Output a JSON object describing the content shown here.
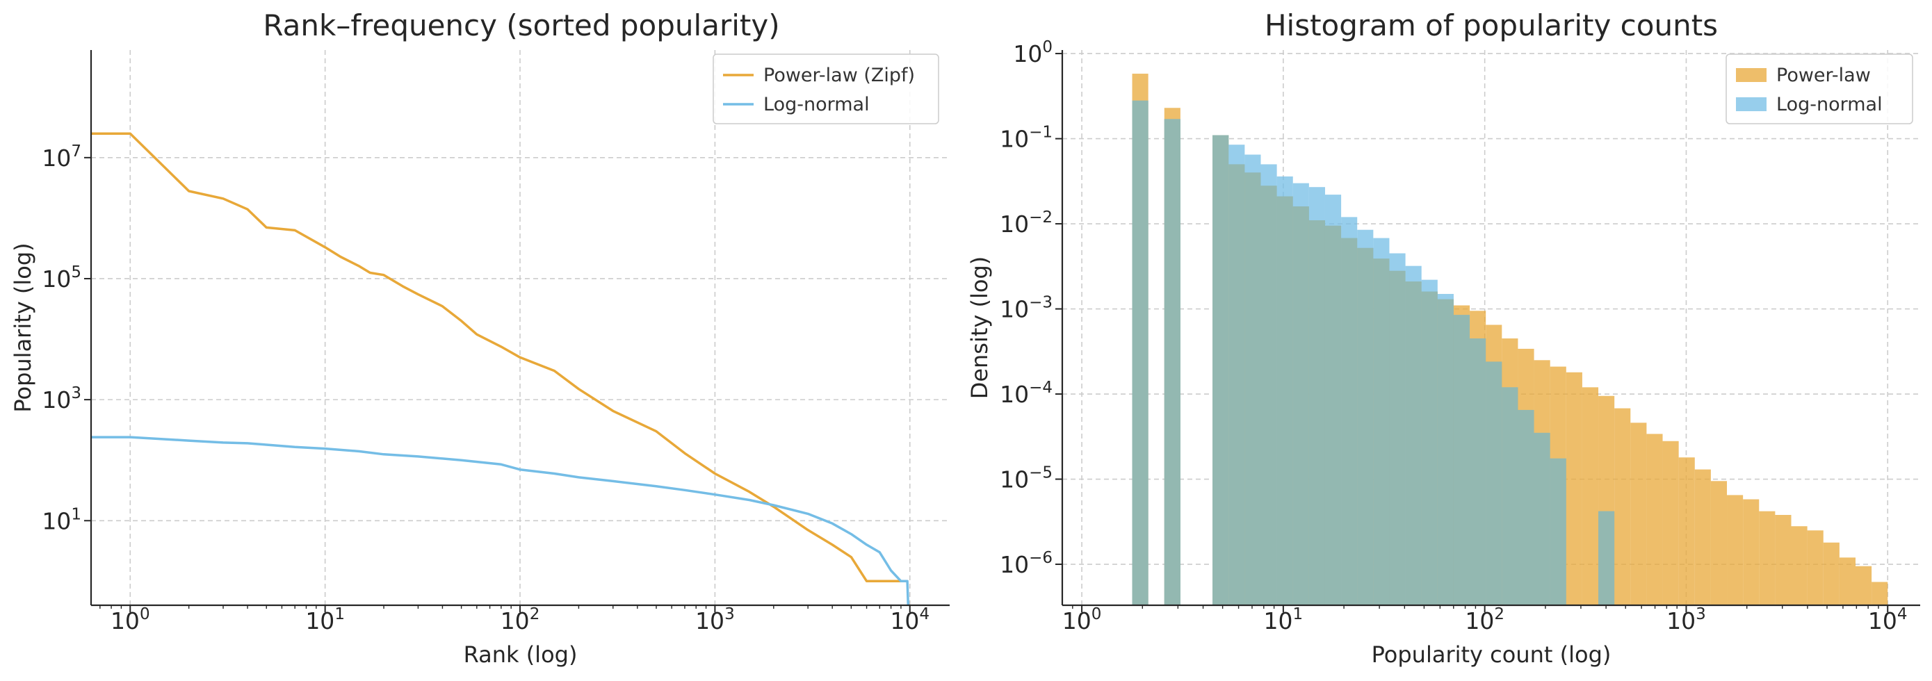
{
  "colors": {
    "power_law": "#E8A838",
    "log_normal": "#74BDE6",
    "overlap": "#93B8B1"
  },
  "chart_data": [
    {
      "type": "line",
      "title": "Rank–frequency (sorted popularity)",
      "xlabel": "Rank (log)",
      "ylabel": "Popularity (log)",
      "xscale": "log",
      "yscale": "log",
      "xlim": [
        0.63,
        16000
      ],
      "ylim": [
        0.4,
        600000000
      ],
      "xticks": [
        {
          "base": "10",
          "exp": "0",
          "value": 1
        },
        {
          "base": "10",
          "exp": "1",
          "value": 10
        },
        {
          "base": "10",
          "exp": "2",
          "value": 100
        },
        {
          "base": "10",
          "exp": "3",
          "value": 1000
        },
        {
          "base": "10",
          "exp": "4",
          "value": 10000
        }
      ],
      "yticks": [
        {
          "base": "10",
          "exp": "1",
          "value": 10
        },
        {
          "base": "10",
          "exp": "3",
          "value": 1000
        },
        {
          "base": "10",
          "exp": "5",
          "value": 100000
        },
        {
          "base": "10",
          "exp": "7",
          "value": 10000000
        }
      ],
      "grid": true,
      "legend": "top-right",
      "series": [
        {
          "name": "Power-law (Zipf)",
          "color": "#E8A838",
          "points": [
            [
              0.63,
              25000000
            ],
            [
              1,
              25000000
            ],
            [
              2,
              2800000
            ],
            [
              3,
              2100000
            ],
            [
              4,
              1400000
            ],
            [
              5,
              700000
            ],
            [
              7,
              630000
            ],
            [
              10,
              330000
            ],
            [
              12,
              230000
            ],
            [
              15,
              160000
            ],
            [
              17,
              125000
            ],
            [
              20,
              115000
            ],
            [
              25,
              75000
            ],
            [
              30,
              55000
            ],
            [
              40,
              35000
            ],
            [
              50,
              20000
            ],
            [
              60,
              12000
            ],
            [
              80,
              7500
            ],
            [
              100,
              5000
            ],
            [
              150,
              3000
            ],
            [
              200,
              1500
            ],
            [
              300,
              650
            ],
            [
              500,
              300
            ],
            [
              700,
              130
            ],
            [
              1000,
              60
            ],
            [
              1500,
              30
            ],
            [
              2000,
              17
            ],
            [
              3000,
              7
            ],
            [
              4000,
              4
            ],
            [
              5000,
              2.5
            ],
            [
              6000,
              1
            ],
            [
              8000,
              1
            ],
            [
              9500,
              1
            ]
          ]
        },
        {
          "name": "Log-normal",
          "color": "#74BDE6",
          "points": [
            [
              0.63,
              240
            ],
            [
              1,
              240
            ],
            [
              2,
              210
            ],
            [
              3,
              195
            ],
            [
              4,
              190
            ],
            [
              5,
              180
            ],
            [
              7,
              165
            ],
            [
              10,
              155
            ],
            [
              15,
              140
            ],
            [
              20,
              125
            ],
            [
              30,
              115
            ],
            [
              50,
              100
            ],
            [
              80,
              85
            ],
            [
              100,
              70
            ],
            [
              150,
              60
            ],
            [
              200,
              52
            ],
            [
              300,
              45
            ],
            [
              500,
              37
            ],
            [
              700,
              32
            ],
            [
              1000,
              27
            ],
            [
              1500,
              22
            ],
            [
              2000,
              18
            ],
            [
              3000,
              13
            ],
            [
              4000,
              9
            ],
            [
              5000,
              6
            ],
            [
              6000,
              4
            ],
            [
              7000,
              3
            ],
            [
              8000,
              1.5
            ],
            [
              9000,
              1
            ],
            [
              9700,
              1
            ],
            [
              9800,
              0.4
            ]
          ]
        }
      ]
    },
    {
      "type": "bar",
      "title": "Histogram of popularity counts",
      "xlabel": "Popularity count (log)",
      "ylabel": "Density (log)",
      "xscale": "log",
      "yscale": "log",
      "xlim": [
        0.8,
        14500
      ],
      "ylim": [
        3.3e-07,
        1.1
      ],
      "xticks": [
        {
          "base": "10",
          "exp": "0",
          "value": 1
        },
        {
          "base": "10",
          "exp": "1",
          "value": 10
        },
        {
          "base": "10",
          "exp": "2",
          "value": 100
        },
        {
          "base": "10",
          "exp": "3",
          "value": 1000
        },
        {
          "base": "10",
          "exp": "4",
          "value": 10000
        }
      ],
      "yticks": [
        {
          "base": "10",
          "exp": "−6",
          "value": 1e-06
        },
        {
          "base": "10",
          "exp": "−5",
          "value": 1e-05
        },
        {
          "base": "10",
          "exp": "−4",
          "value": 0.0001
        },
        {
          "base": "10",
          "exp": "−3",
          "value": 0.001
        },
        {
          "base": "10",
          "exp": "−2",
          "value": 0.01
        },
        {
          "base": "10",
          "exp": "−1",
          "value": 0.1
        },
        {
          "base": "10",
          "exp": "0",
          "value": 1
        }
      ],
      "grid": true,
      "legend": "top-right",
      "bin_edges_log10_range": [
        0.25,
        4.0
      ],
      "series": [
        {
          "name": "Power-law",
          "color": "#E8A838",
          "values": [
            0.58,
            0,
            0.23,
            0,
            0,
            0.11,
            0.05,
            0.04,
            0.028,
            0.021,
            0.016,
            0.011,
            0.0095,
            0.0068,
            0.0052,
            0.0039,
            0.0028,
            0.0021,
            0.0016,
            0.0013,
            0.0011,
            0.00095,
            0.00065,
            0.00045,
            0.00034,
            0.00025,
            0.00021,
            0.00018,
            0.00012,
            9.5e-05,
            6.8e-05,
            4.6e-05,
            3.4e-05,
            2.8e-05,
            1.8e-05,
            1.3e-05,
            9.5e-06,
            6.5e-06,
            5.8e-06,
            4.2e-06,
            3.8e-06,
            2.8e-06,
            2.5e-06,
            1.8e-06,
            1.2e-06,
            9.5e-07,
            6.2e-07
          ]
        },
        {
          "name": "Log-normal",
          "color": "#74BDE6",
          "values": [
            0.28,
            0,
            0.17,
            0,
            0,
            0.11,
            0.085,
            0.065,
            0.05,
            0.036,
            0.03,
            0.027,
            0.022,
            0.012,
            0.0085,
            0.0068,
            0.0045,
            0.0032,
            0.0022,
            0.0015,
            0.00085,
            0.00045,
            0.00024,
            0.00012,
            6.5e-05,
            3.5e-05,
            1.75e-05,
            0,
            0,
            4.2e-06,
            0,
            0,
            0,
            0,
            0,
            0,
            0,
            0,
            0,
            0,
            0,
            0,
            0,
            0,
            0,
            0,
            0
          ]
        }
      ]
    }
  ]
}
